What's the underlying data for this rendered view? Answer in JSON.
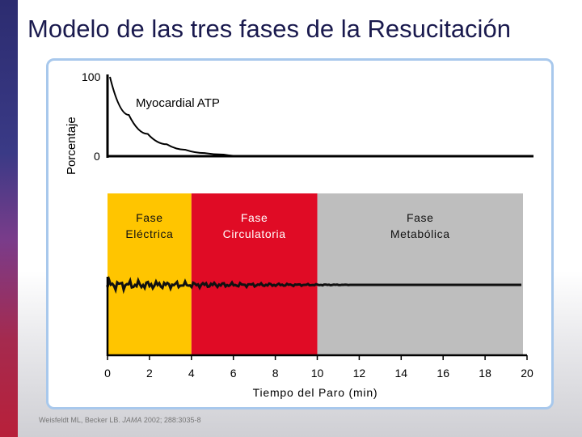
{
  "title": "Modelo de las tres fases de la Resucitación",
  "top_chart": {
    "ylabel": "Porcentaje",
    "y_max_label": "100",
    "y_min_label": "0",
    "curve_label": "Myocardial ATP",
    "ylim": [
      0,
      100
    ],
    "series": [
      {
        "name": "Myocardial ATP",
        "x": [
          0,
          1,
          2,
          3,
          4,
          5,
          6,
          7
        ],
        "y": [
          100,
          52,
          28,
          15,
          8,
          4,
          2,
          0
        ]
      }
    ]
  },
  "phases": [
    {
      "label": "Fase\nEléctrica",
      "start": 0,
      "end": 4,
      "color": "#ffc500"
    },
    {
      "label": "Fase\nCirculatoria",
      "start": 4,
      "end": 10,
      "color": "#e00b25"
    },
    {
      "label": "Fase\nMetabólica",
      "start": 10,
      "end": 20,
      "color": "#bebebe"
    }
  ],
  "chart_data": {
    "type": "line",
    "x_ticks": [
      "0",
      "2",
      "4",
      "6",
      "8",
      "10",
      "12",
      "14",
      "16",
      "18",
      "20"
    ],
    "xlabel": "Tiempo del Paro (min)",
    "xlim": [
      0,
      20
    ]
  },
  "citation": {
    "prefix": "Weisfeldt ML, Becker LB. ",
    "journal": "JAMA",
    "suffix": " 2002; 288:3035-8"
  }
}
